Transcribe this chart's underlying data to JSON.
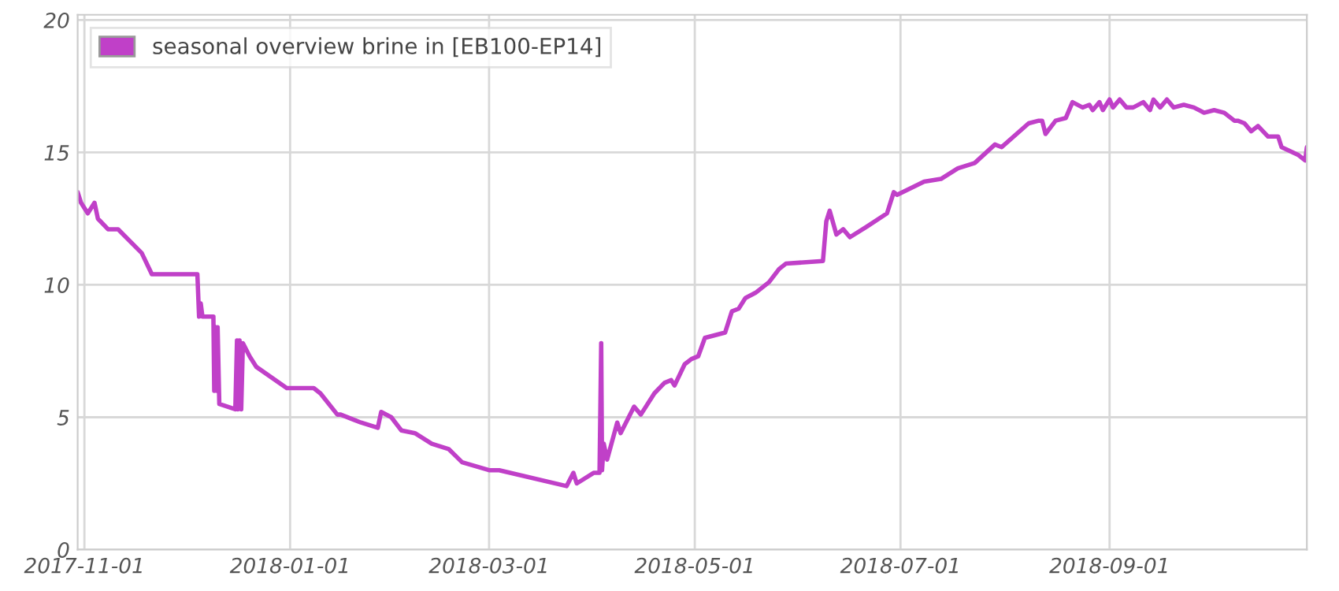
{
  "chart_data": {
    "type": "line",
    "legend": "top left",
    "grid": true,
    "line_style": "solid",
    "marker": "none",
    "xlim": [
      "2017-10-30",
      "2018-10-29T12:00"
    ],
    "xticks": [
      "2017-11-01",
      "2018-01-01",
      "2018-03-01",
      "2018-05-01",
      "2018-07-01",
      "2018-09-01"
    ],
    "ylim": [
      0,
      20.2
    ],
    "yticks": [
      0,
      5,
      10,
      15,
      20
    ],
    "series": [
      {
        "name": "seasonal overview brine in [EB100-EP14]",
        "color": "#c040c8",
        "x": [
          "2017-10-30",
          "2017-10-31",
          "2017-11-02",
          "2017-11-04",
          "2017-11-05",
          "2017-11-08",
          "2017-11-11",
          "2017-11-18",
          "2017-11-21",
          "2017-12-04T12:00",
          "2017-12-05T00:00",
          "2017-12-05T12:00",
          "2017-12-06",
          "2017-12-09T06:00",
          "2017-12-09T12:00",
          "2017-12-10T00:00",
          "2017-12-10T06:00",
          "2017-12-10T12:00",
          "2017-12-11T00:00",
          "2017-12-15T18:00",
          "2017-12-16T06:00",
          "2017-12-16T12:00",
          "2017-12-17T00:00",
          "2017-12-17T12:00",
          "2017-12-18T00:00",
          "2017-12-20",
          "2017-12-22",
          "2017-12-31",
          "2018-01-08",
          "2018-01-10",
          "2018-01-15",
          "2018-01-16",
          "2018-01-20",
          "2018-01-22",
          "2018-01-27",
          "2018-01-28",
          "2018-01-31",
          "2018-02-03",
          "2018-02-07",
          "2018-02-12",
          "2018-02-17",
          "2018-02-21",
          "2018-03-01",
          "2018-03-04",
          "2018-03-24",
          "2018-03-26",
          "2018-03-27",
          "2018-04-01",
          "2018-04-02T18:00",
          "2018-04-03T06:00",
          "2018-04-03T12:00",
          "2018-04-04",
          "2018-04-05",
          "2018-04-08",
          "2018-04-09",
          "2018-04-13",
          "2018-04-15",
          "2018-04-19",
          "2018-04-22",
          "2018-04-24",
          "2018-04-25",
          "2018-04-28",
          "2018-04-30",
          "2018-05-02",
          "2018-05-04",
          "2018-05-10",
          "2018-05-12",
          "2018-05-14",
          "2018-05-16",
          "2018-05-19",
          "2018-05-23",
          "2018-05-26",
          "2018-05-28",
          "2018-06-08",
          "2018-06-09",
          "2018-06-10",
          "2018-06-12",
          "2018-06-14",
          "2018-06-16",
          "2018-06-21",
          "2018-06-27",
          "2018-06-29",
          "2018-06-30",
          "2018-07-08",
          "2018-07-13",
          "2018-07-18",
          "2018-07-23",
          "2018-07-29",
          "2018-07-31",
          "2018-08-08",
          "2018-08-11",
          "2018-08-11T12:00",
          "2018-08-12",
          "2018-08-13",
          "2018-08-16",
          "2018-08-19",
          "2018-08-21",
          "2018-08-24",
          "2018-08-26",
          "2018-08-27",
          "2018-08-29",
          "2018-08-30",
          "2018-09-01",
          "2018-09-02",
          "2018-09-04",
          "2018-09-06",
          "2018-09-08",
          "2018-09-11",
          "2018-09-13",
          "2018-09-14",
          "2018-09-16",
          "2018-09-18",
          "2018-09-20",
          "2018-09-23",
          "2018-09-26",
          "2018-09-29",
          "2018-10-02",
          "2018-10-05",
          "2018-10-08",
          "2018-10-08T12:00",
          "2018-10-09",
          "2018-10-11",
          "2018-10-13",
          "2018-10-15",
          "2018-10-18",
          "2018-10-21",
          "2018-10-22",
          "2018-10-27",
          "2018-10-29",
          "2018-10-29T12:00"
        ],
        "values": [
          13.5,
          13.1,
          12.7,
          13.1,
          12.5,
          12.1,
          12.1,
          11.2,
          10.4,
          10.4,
          8.8,
          9.3,
          8.8,
          8.8,
          6.0,
          8.4,
          6.0,
          8.4,
          5.5,
          5.3,
          7.9,
          5.3,
          7.9,
          5.3,
          7.8,
          7.3,
          6.9,
          6.1,
          6.1,
          5.9,
          5.1,
          5.1,
          4.9,
          4.8,
          4.6,
          5.2,
          5.0,
          4.5,
          4.4,
          4.0,
          3.8,
          3.3,
          3.0,
          3.0,
          2.4,
          2.9,
          2.5,
          2.9,
          2.9,
          7.8,
          3.0,
          4.0,
          3.4,
          4.8,
          4.4,
          5.4,
          5.1,
          5.9,
          6.3,
          6.4,
          6.2,
          7.0,
          7.2,
          7.3,
          8.0,
          8.2,
          9.0,
          9.1,
          9.5,
          9.7,
          10.1,
          10.6,
          10.8,
          10.9,
          12.4,
          12.8,
          11.9,
          12.1,
          11.8,
          12.2,
          12.7,
          13.5,
          13.4,
          13.9,
          14.0,
          14.4,
          14.6,
          15.3,
          15.2,
          16.1,
          16.2,
          null,
          16.2,
          15.7,
          16.2,
          16.3,
          16.9,
          16.7,
          16.8,
          16.6,
          16.9,
          16.6,
          17.0,
          16.7,
          17.0,
          16.7,
          16.7,
          16.9,
          16.6,
          17.0,
          16.7,
          17.0,
          16.7,
          16.8,
          16.7,
          16.5,
          16.6,
          16.5,
          16.2,
          null,
          16.2,
          16.1,
          15.8,
          16.0,
          15.6,
          15.6,
          15.2,
          14.9,
          14.7,
          15.2
        ]
      }
    ]
  }
}
